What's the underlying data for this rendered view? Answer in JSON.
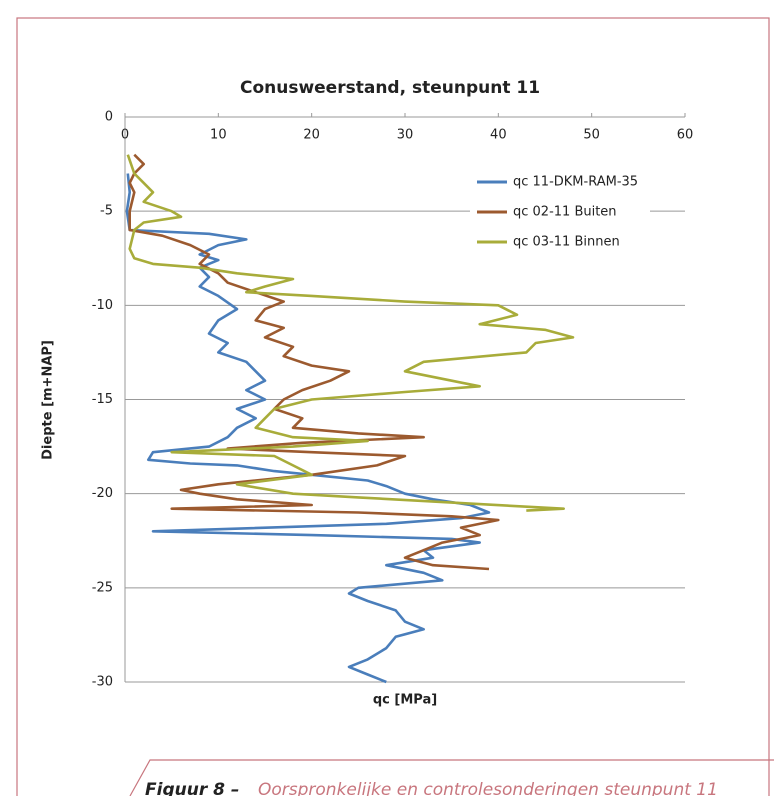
{
  "chart_data": {
    "type": "line",
    "title": "Conusweerstand, steunpunt 11",
    "xlabel": "qc [MPa]",
    "ylabel": "Diepte [m+NAP]",
    "xlim": [
      0,
      60
    ],
    "xticks": [
      0,
      10,
      20,
      30,
      40,
      50,
      60
    ],
    "ylim": [
      -30,
      0
    ],
    "yticks": [
      0,
      -5,
      -10,
      -15,
      -20,
      -25,
      -30
    ],
    "grid": true,
    "legend": "upper right",
    "series": [
      {
        "name": "qc 11-DKM-RAM-35",
        "color": "#4a7ebb",
        "x": [
          0.3,
          0.5,
          0.2,
          0.5,
          9,
          13,
          10,
          8,
          10,
          8,
          9,
          8,
          10,
          12,
          10,
          9,
          11,
          10,
          13,
          14,
          15,
          13,
          15,
          12,
          14,
          12,
          11,
          9,
          3,
          2.5,
          7,
          12,
          16,
          20,
          26,
          28,
          30,
          33,
          37,
          39,
          36,
          28,
          3,
          20,
          35,
          38,
          32,
          33,
          28,
          32,
          34,
          25,
          24,
          26,
          29,
          30,
          32,
          29,
          28,
          26,
          24,
          26,
          28
        ],
        "y": [
          -3,
          -4,
          -5,
          -6,
          -6.2,
          -6.5,
          -6.8,
          -7.3,
          -7.6,
          -8,
          -8.5,
          -9,
          -9.5,
          -10.2,
          -10.8,
          -11.5,
          -12,
          -12.5,
          -13,
          -13.5,
          -14,
          -14.5,
          -15,
          -15.5,
          -16,
          -16.5,
          -17,
          -17.5,
          -17.8,
          -18.2,
          -18.4,
          -18.5,
          -18.8,
          -19,
          -19.3,
          -19.6,
          -20,
          -20.3,
          -20.6,
          -21,
          -21.3,
          -21.6,
          -22,
          -22.2,
          -22.4,
          -22.6,
          -23,
          -23.4,
          -23.8,
          -24.2,
          -24.6,
          -25,
          -25.3,
          -25.7,
          -26.2,
          -26.8,
          -27.2,
          -27.6,
          -28.2,
          -28.8,
          -29.2,
          -29.6,
          -30
        ]
      },
      {
        "name": "qc 02-11 Buiten",
        "color": "#9c5a2f",
        "x": [
          1,
          2,
          1,
          0.5,
          1,
          0.5,
          0.5,
          4,
          7,
          9,
          8,
          10,
          11,
          14,
          17,
          15,
          14,
          17,
          15,
          18,
          17,
          20,
          24,
          22,
          19,
          17,
          16,
          19,
          18,
          25,
          32,
          19,
          11,
          20,
          30,
          27,
          20,
          10,
          6,
          8,
          12,
          20,
          5,
          25,
          35,
          40,
          36,
          38,
          34,
          32,
          30,
          33,
          39
        ],
        "y": [
          -2,
          -2.5,
          -3,
          -3.5,
          -4,
          -5,
          -6,
          -6.3,
          -6.8,
          -7.3,
          -7.8,
          -8.3,
          -8.8,
          -9.3,
          -9.8,
          -10.2,
          -10.8,
          -11.2,
          -11.7,
          -12.2,
          -12.7,
          -13.2,
          -13.5,
          -14,
          -14.5,
          -15,
          -15.5,
          -16,
          -16.5,
          -16.8,
          -17,
          -17.3,
          -17.6,
          -17.8,
          -18,
          -18.5,
          -19,
          -19.5,
          -19.8,
          -20,
          -20.3,
          -20.6,
          -20.8,
          -21,
          -21.2,
          -21.4,
          -21.8,
          -22.2,
          -22.6,
          -23,
          -23.4,
          -23.8,
          -24
        ]
      },
      {
        "name": "qc 03-11 Binnen",
        "color": "#a8ac3a",
        "x": [
          0.3,
          1,
          2,
          3,
          2,
          5,
          6,
          2,
          1,
          0.5,
          1,
          3,
          8,
          12,
          18,
          15,
          13,
          20,
          30,
          40,
          42,
          38,
          45,
          48,
          44,
          43,
          32,
          30,
          35,
          38,
          30,
          20,
          16,
          15,
          14,
          18,
          26,
          18,
          5,
          16,
          18,
          20,
          12,
          18,
          25,
          47,
          43
        ],
        "y": [
          -2,
          -3,
          -3.5,
          -4,
          -4.5,
          -5,
          -5.3,
          -5.6,
          -6,
          -7,
          -7.5,
          -7.8,
          -8,
          -8.3,
          -8.6,
          -9,
          -9.3,
          -9.5,
          -9.8,
          -10,
          -10.5,
          -11,
          -11.3,
          -11.7,
          -12,
          -12.5,
          -13,
          -13.5,
          -14,
          -14.3,
          -14.6,
          -15,
          -15.5,
          -16,
          -16.5,
          -17,
          -17.2,
          -17.5,
          -17.8,
          -18,
          -18.5,
          -19,
          -19.5,
          -20,
          -20.2,
          -20.8,
          -20.9
        ]
      }
    ]
  },
  "caption": {
    "label": "Figuur 8 –",
    "text": "Oorspronkelijke en controlesonderingen steunpunt 11"
  }
}
